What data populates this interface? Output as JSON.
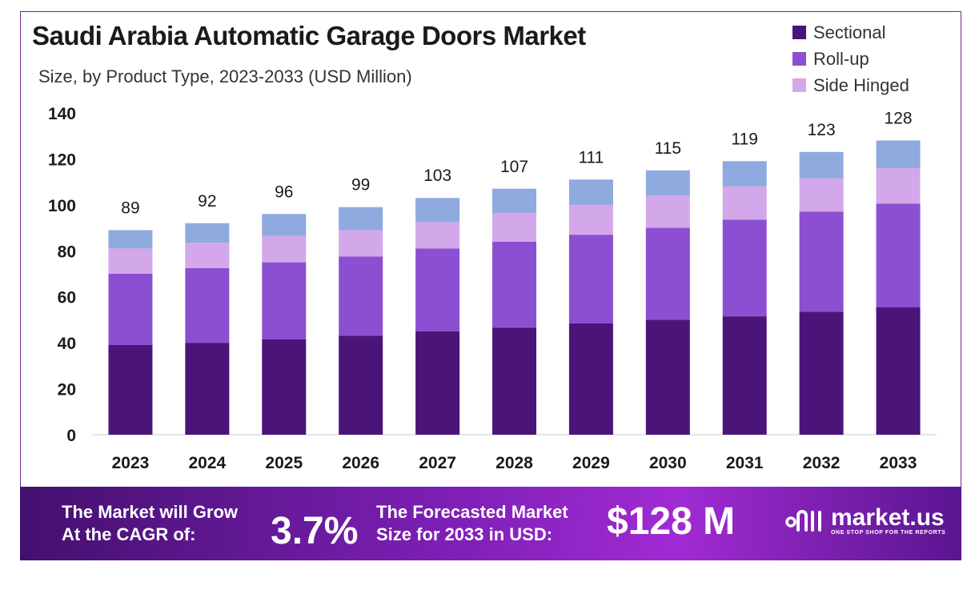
{
  "title": "Saudi Arabia Automatic Garage Doors Market",
  "subtitle": "Size, by Product Type, 2023-2033 (USD Million)",
  "legend": [
    {
      "name": "Sectional",
      "color": "#4b1479"
    },
    {
      "name": "Roll-up",
      "color": "#8c4fd1"
    },
    {
      "name": "Side Hinged",
      "color": "#d2a8ea"
    }
  ],
  "chart_data": {
    "type": "bar",
    "stacked": true,
    "categories": [
      "2023",
      "2024",
      "2025",
      "2026",
      "2027",
      "2028",
      "2029",
      "2030",
      "2031",
      "2032",
      "2033"
    ],
    "totals": [
      89,
      92,
      96,
      99,
      103,
      107,
      111,
      115,
      119,
      123,
      128
    ],
    "series": [
      {
        "name": "Sectional",
        "color": "#4b1479",
        "values": [
          39,
          40,
          41.5,
          43,
          45,
          46.5,
          48.5,
          50,
          51.5,
          53.5,
          55.5
        ]
      },
      {
        "name": "Roll-up",
        "color": "#8c4fd1",
        "values": [
          31,
          32.5,
          33.5,
          34.5,
          36,
          37.5,
          38.5,
          40,
          42,
          43.5,
          45
        ]
      },
      {
        "name": "Side Hinged",
        "color": "#d2a8ea",
        "values": [
          11,
          11,
          11.5,
          11.5,
          11.5,
          12.5,
          13,
          14,
          14.5,
          14.5,
          15.5
        ]
      },
      {
        "color": "#8eaadf",
        "values": [
          8,
          8.5,
          9.5,
          10,
          10.5,
          10.5,
          11,
          11,
          11,
          11.5,
          12
        ]
      }
    ],
    "yticks": [
      0,
      20,
      40,
      60,
      80,
      100,
      120,
      140
    ],
    "ylim": [
      0,
      140
    ],
    "grid": false,
    "legend_position": "top-right"
  },
  "banner": {
    "cagr_line1": "The Market will Grow",
    "cagr_line2": "At the CAGR of:",
    "cagr_value": "3.7%",
    "forecast_line1": "The Forecasted Market",
    "forecast_line2": "Size for 2033 in USD:",
    "forecast_value": "$128 M",
    "brand_name": "market.us",
    "brand_tagline": "ONE STOP SHOP FOR THE REPORTS"
  }
}
